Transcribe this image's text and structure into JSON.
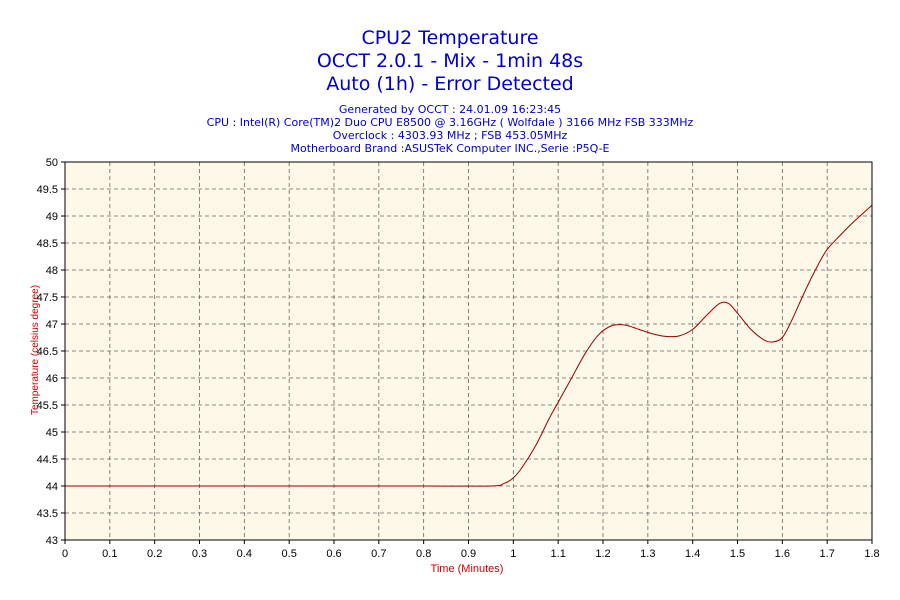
{
  "header": {
    "title_lines": [
      "CPU2 Temperature",
      "OCCT 2.0.1 - Mix - 1min 48s",
      "Auto (1h) - Error Detected"
    ],
    "info_lines": [
      "Generated by OCCT : 24.01.09 16:23:45",
      "CPU : Intel(R) Core(TM)2 Duo CPU E8500 @ 3.16GHz ( Wolfdale ) 3166 MHz FSB 333MHz",
      "Overclock : 4303.93 MHz ; FSB 453.05MHz",
      "Motherboard Brand :ASUSTeK Computer INC.,Serie :P5Q-E"
    ]
  },
  "colors": {
    "title": "#0000cc",
    "axis_label": "#cc0000",
    "plot_background": "#fdf8e8",
    "line": "#990000",
    "grid": "#666666"
  },
  "chart_data": {
    "type": "line",
    "xlabel": "Time (Minutes)",
    "ylabel": "Temperature (celsius degree)",
    "xlim": [
      0,
      1.8
    ],
    "ylim": [
      43,
      50
    ],
    "x_ticks": [
      0,
      0.1,
      0.2,
      0.3,
      0.4,
      0.5,
      0.6,
      0.7,
      0.8,
      0.9,
      1,
      1.1,
      1.2,
      1.3,
      1.4,
      1.5,
      1.6,
      1.7,
      1.8
    ],
    "x_tick_labels": [
      "0",
      "0.1",
      "0.2",
      "0.3",
      "0.4",
      "0.5",
      "0.6",
      "0.7",
      "0.8",
      "0.9",
      "1",
      "1.1",
      "1.2",
      "1.3",
      "1.4",
      "1.5",
      "1.6",
      "1.7",
      "1.8"
    ],
    "y_ticks": [
      43,
      43.5,
      44,
      44.5,
      45,
      45.5,
      46,
      46.5,
      47,
      47.5,
      48,
      48.5,
      49,
      49.5,
      50
    ],
    "y_tick_labels": [
      "43",
      "43.5",
      "44",
      "44.5",
      "45",
      "45.5",
      "46",
      "46.5",
      "47",
      "47.5",
      "48",
      "48.5",
      "49",
      "49.5",
      "50"
    ],
    "grid": true,
    "series": [
      {
        "x": [
          0,
          0.2,
          0.4,
          0.6,
          0.8,
          0.95,
          0.98,
          1.0,
          1.02,
          1.05,
          1.08,
          1.1,
          1.13,
          1.16,
          1.19,
          1.22,
          1.25,
          1.28,
          1.31,
          1.34,
          1.37,
          1.4,
          1.43,
          1.46,
          1.48,
          1.5,
          1.53,
          1.56,
          1.58,
          1.6,
          1.62,
          1.65,
          1.68,
          1.7,
          1.73,
          1.76,
          1.8
        ],
        "y": [
          44,
          44,
          44,
          44,
          44,
          44,
          44.05,
          44.15,
          44.35,
          44.75,
          45.25,
          45.55,
          46.0,
          46.45,
          46.8,
          46.97,
          46.98,
          46.9,
          46.82,
          46.77,
          46.78,
          46.9,
          47.15,
          47.38,
          47.38,
          47.2,
          46.9,
          46.7,
          46.67,
          46.75,
          47.05,
          47.6,
          48.1,
          48.38,
          48.65,
          48.9,
          49.2
        ]
      }
    ]
  }
}
